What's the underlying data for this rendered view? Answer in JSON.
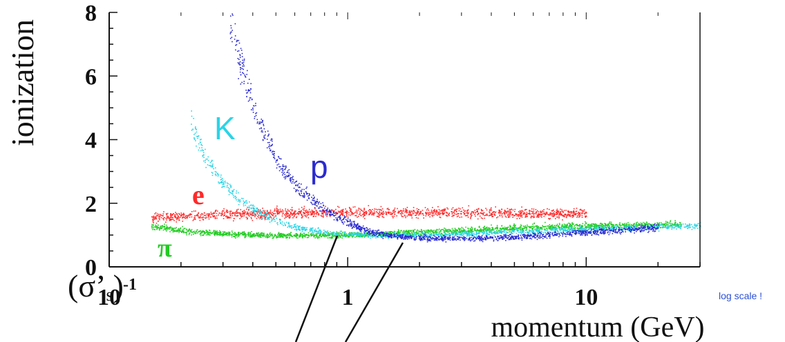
{
  "chart_data": {
    "type": "scatter",
    "title": "",
    "xlabel": "momentum (GeV)",
    "ylabel": "ionization",
    "x_scale": "log",
    "xlim": [
      0.1,
      30
    ],
    "ylim": [
      0,
      8
    ],
    "y_ticks": [
      "0",
      "2",
      "4",
      "6",
      "8"
    ],
    "x_ticks": [
      {
        "base": "10",
        "exp": "-1"
      },
      {
        "base": "1",
        "exp": ""
      },
      {
        "base": "10",
        "exp": ""
      }
    ],
    "grid": false,
    "legend": "none",
    "series": [
      {
        "name": "e",
        "color": "#ff2a2a",
        "x": [
          0.15,
          0.2,
          0.3,
          0.5,
          0.8,
          1,
          2,
          4,
          6,
          10
        ],
        "y": [
          1.55,
          1.6,
          1.65,
          1.7,
          1.72,
          1.72,
          1.72,
          1.72,
          1.7,
          1.68
        ]
      },
      {
        "name": "π",
        "color": "#22cc22",
        "x": [
          0.15,
          0.2,
          0.3,
          0.5,
          0.8,
          1,
          2,
          4,
          8,
          15,
          25
        ],
        "y": [
          1.3,
          1.15,
          1.05,
          1.0,
          1.0,
          1.02,
          1.1,
          1.2,
          1.28,
          1.32,
          1.35
        ]
      },
      {
        "name": "K",
        "color": "#2ad4e6",
        "x": [
          0.22,
          0.25,
          0.3,
          0.4,
          0.5,
          0.6,
          0.8,
          1,
          1.5,
          3,
          10,
          30
        ],
        "y": [
          4.6,
          3.5,
          2.6,
          1.8,
          1.45,
          1.25,
          1.1,
          1.05,
          1.0,
          1.05,
          1.2,
          1.3
        ]
      },
      {
        "name": "p",
        "color": "#2a2ad0",
        "x": [
          0.32,
          0.35,
          0.4,
          0.5,
          0.6,
          0.8,
          1,
          1.2,
          1.5,
          2,
          3,
          5,
          10,
          20
        ],
        "y": [
          7.8,
          6.5,
          5.0,
          3.4,
          2.6,
          1.8,
          1.4,
          1.15,
          1.0,
          0.92,
          0.9,
          0.95,
          1.1,
          1.25
        ]
      }
    ],
    "annotations": [
      "(σ’s)",
      "log scale !"
    ]
  }
}
